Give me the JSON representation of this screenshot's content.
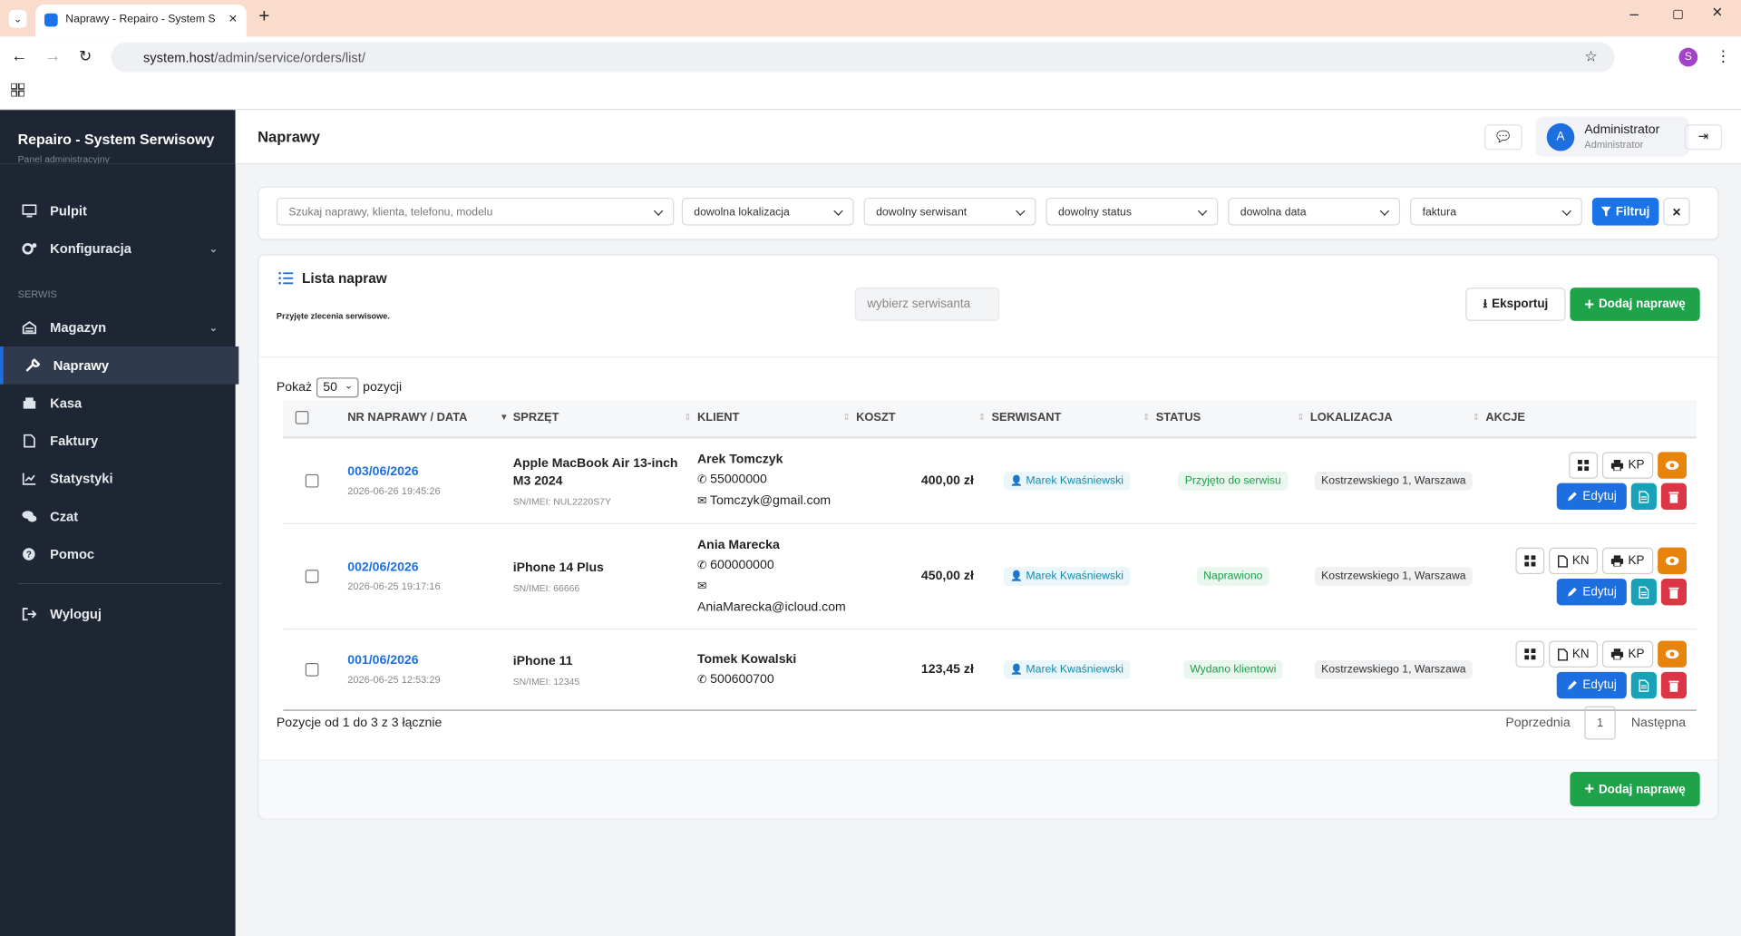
{
  "browser": {
    "tab_title": "Naprawy - Repairo - System Se",
    "url_host": "system.host",
    "url_path": "/admin/service/orders/list/",
    "profile_initial": "S"
  },
  "sidebar": {
    "brand": "Repairo - System Serwisowy",
    "subtitle": "Panel administracyjny",
    "nav": [
      "Pulpit",
      "Konfiguracja"
    ],
    "section": "SERWIS",
    "service_nav": [
      "Magazyn",
      "Naprawy",
      "Kasa",
      "Faktury",
      "Statystyki",
      "Czat",
      "Pomoc"
    ],
    "logout": "Wyloguj"
  },
  "header": {
    "title": "Naprawy",
    "avatar": "A",
    "user_name": "Administrator",
    "user_role": "Administrator"
  },
  "filters": {
    "search_placeholder": "Szukaj naprawy, klienta, telefonu, modelu",
    "selects": [
      "dowolna lokalizacja",
      "dowolny serwisant",
      "dowolny status",
      "dowolna data",
      "faktura"
    ],
    "submit": "Filtruj"
  },
  "list": {
    "title": "Lista napraw",
    "subtitle": "Przyjęte zlecenia serwisowe.",
    "technician_placeholder": "wybierz serwisanta",
    "export": "Eksportuj",
    "add": "Dodaj naprawę",
    "show_label": "Pokaż",
    "page_size": "50",
    "show_suffix": "pozycji",
    "table": {
      "columns": [
        "NR NAPRAWY / DATA",
        "SPRZĘT",
        "KLIENT",
        "KOSZT",
        "SERWISANT",
        "STATUS",
        "LOKALIZACJA",
        "AKCJE"
      ],
      "rows": [
        {
          "number": "003/06/2026",
          "date": "2026-06-26 19:45:26",
          "device": "Apple MacBook Air 13-inch M3 2024",
          "imei": "SN/IMEI: NUL2220S7Y",
          "client": "Arek Tomczyk",
          "phone": "55000000",
          "email": "Tomczyk@gmail.com",
          "cost": "400,00 zł",
          "technician": "Marek Kwaśniewski",
          "status": "Przyjęto do serwisu",
          "location": "Kostrzewskiego 1, Warszawa",
          "print_labels": [
            "KP"
          ],
          "edit_label": "Edytuj"
        },
        {
          "number": "002/06/2026",
          "date": "2026-06-25 19:17:16",
          "device": "iPhone 14 Plus",
          "imei": "SN/IMEI: 66666",
          "client": "Ania Marecka",
          "phone": "600000000",
          "email": "AniaMarecka@icloud.com",
          "cost": "450,00 zł",
          "technician": "Marek Kwaśniewski",
          "status": "Naprawiono",
          "location": "Kostrzewskiego 1, Warszawa",
          "print_labels": [
            "KN",
            "KP"
          ],
          "edit_label": "Edytuj"
        },
        {
          "number": "001/06/2026",
          "date": "2026-06-25 12:53:29",
          "device": "iPhone 11",
          "imei": "SN/IMEI: 12345",
          "client": "Tomek Kowalski",
          "phone": "500600700",
          "cost": "123,45 zł",
          "technician": "Marek Kwaśniewski",
          "status": "Wydano klientowi",
          "location": "Kostrzewskiego 1, Warszawa",
          "print_labels": [
            "KN",
            "KP"
          ],
          "edit_label": "Edytuj"
        }
      ]
    },
    "info": "Pozycje od 1 do 3 z 3 łącznie",
    "prev": "Poprzednia",
    "current_page": "1",
    "next": "Następna"
  }
}
